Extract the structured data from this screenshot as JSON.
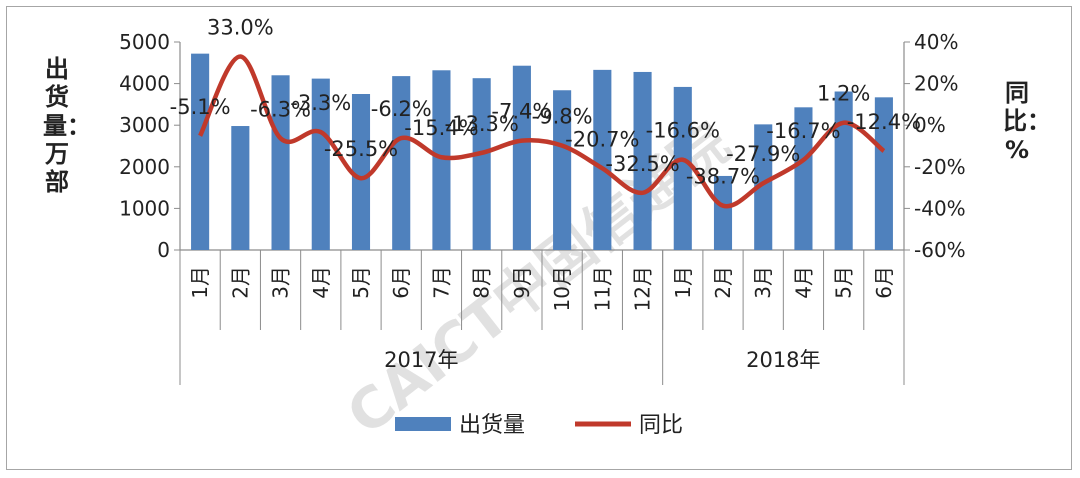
{
  "chart_data": {
    "type": "bar",
    "title": "",
    "ylabel_left": "出货量：万部",
    "ylabel_right": "同比：%",
    "categories": [
      "1月",
      "2月",
      "3月",
      "4月",
      "5月",
      "6月",
      "7月",
      "8月",
      "9月",
      "10月",
      "11月",
      "12月",
      "1月",
      "2月",
      "3月",
      "4月",
      "5月",
      "6月"
    ],
    "category_groups": [
      {
        "label": "2017年",
        "count": 12
      },
      {
        "label": "2018年",
        "count": 6
      }
    ],
    "ylim_left": [
      0,
      5000
    ],
    "yticks_left": [
      "0",
      "1000",
      "2000",
      "3000",
      "4000",
      "5000"
    ],
    "ylim_right": [
      -60,
      40
    ],
    "yticks_right": [
      "-60%",
      "-40%",
      "-20%",
      "0%",
      "20%",
      "40%"
    ],
    "legend_position": "bottom",
    "series": [
      {
        "name": "出货量",
        "type": "bar",
        "color": "#4f81bd",
        "values": [
          4720,
          2980,
          4200,
          4120,
          3750,
          4180,
          4320,
          4130,
          4430,
          3840,
          4330,
          4280,
          3920,
          1780,
          3020,
          3430,
          3810,
          3670
        ]
      },
      {
        "name": "同比",
        "type": "line",
        "axis": "right",
        "color": "#c0392b",
        "values": [
          -5.1,
          33.0,
          -6.3,
          -3.3,
          -25.5,
          -6.2,
          -15.4,
          -13.3,
          -7.4,
          -9.8,
          -20.7,
          -32.5,
          -16.6,
          -38.7,
          -27.9,
          -16.7,
          1.2,
          -12.4
        ],
        "labels": [
          "-5.1%",
          "33.0%",
          "-6.3%",
          "-3.3%",
          "-25.5%",
          "-6.2%",
          "-15.4%",
          "-13.3%",
          "-7.4%",
          "-9.8%",
          "-20.7%",
          "-32.5%",
          "-16.6%",
          "-38.7%",
          "-27.9%",
          "-16.7%",
          "1.2%",
          "-12.4%"
        ]
      }
    ]
  },
  "watermark": {
    "text": "CAICT中国信通院",
    "color": "#c8c8c8"
  }
}
